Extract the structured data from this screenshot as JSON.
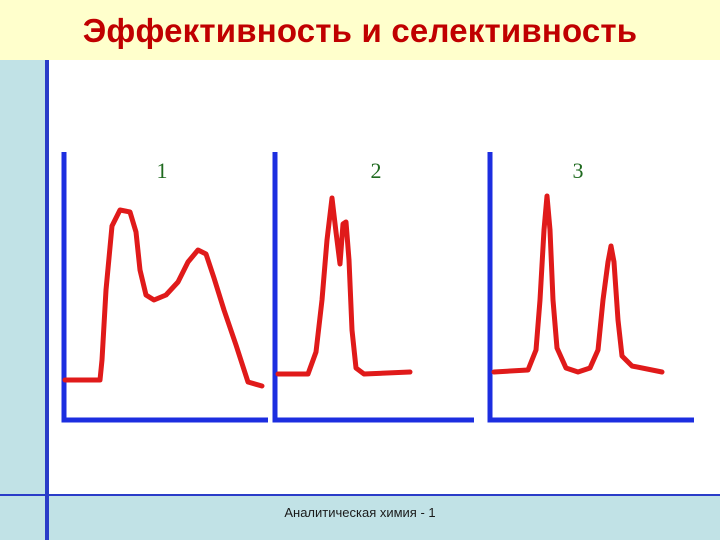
{
  "slide": {
    "title": "Эффективность и селективность",
    "footer": "Аналитическая химия - 1"
  },
  "panels": [
    {
      "label": "1"
    },
    {
      "label": "2"
    },
    {
      "label": "3"
    }
  ],
  "colors": {
    "title": "#c00000",
    "axes": "#1c2ee0",
    "curve": "#e01a1a",
    "labels": "#1f6a1f",
    "band": "#c1e2e6",
    "title_bg": "#ffffcc"
  }
}
